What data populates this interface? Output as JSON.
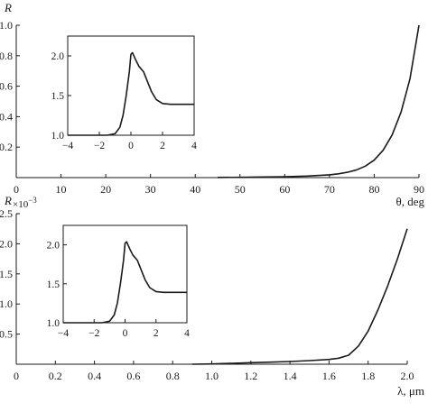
{
  "chart_data": [
    {
      "type": "line",
      "title": "",
      "ylabel": "R",
      "xlabel": "θ, deg",
      "xlim": [
        0,
        90
      ],
      "ylim": [
        0,
        1.0
      ],
      "x_ticks": [
        "0",
        "10",
        "20",
        "30",
        "40",
        "50",
        "60",
        "70",
        "80",
        "90"
      ],
      "y_ticks": [
        "0.2",
        "0.4",
        "0.6",
        "0.8",
        "1.0"
      ],
      "series": [
        {
          "x": [
            45,
            50,
            55,
            60,
            65,
            70,
            72,
            74,
            76,
            78,
            80,
            82,
            84,
            86,
            88,
            90
          ],
          "y": [
            0.001,
            0.002,
            0.004,
            0.006,
            0.01,
            0.018,
            0.025,
            0.035,
            0.05,
            0.075,
            0.115,
            0.18,
            0.28,
            0.43,
            0.65,
            1.0
          ]
        }
      ],
      "inset": {
        "type": "line",
        "xlim": [
          -4,
          4
        ],
        "ylim": [
          1.0,
          2.25
        ],
        "x_ticks": [
          "−4",
          "−2",
          "0",
          "2",
          "4"
        ],
        "y_ticks": [
          "1.0",
          "1.5",
          "2.0"
        ],
        "series": [
          {
            "x": [
              -4,
              -2,
              -1.5,
              -1.0,
              -0.7,
              -0.5,
              -0.3,
              -0.1,
              0.0,
              0.1,
              0.3,
              0.5,
              0.8,
              1.0,
              1.3,
              1.6,
              2.0,
              2.5,
              3.0,
              4.0
            ],
            "y": [
              1.0,
              1.0,
              1.0,
              1.02,
              1.1,
              1.25,
              1.5,
              1.8,
              2.02,
              2.04,
              1.95,
              1.87,
              1.8,
              1.7,
              1.55,
              1.45,
              1.4,
              1.39,
              1.39,
              1.39
            ]
          }
        ]
      }
    },
    {
      "type": "line",
      "title": "",
      "ylabel": "R",
      "y_multiplier": "×10",
      "y_multiplier_exp": "−3",
      "xlabel": "λ, μm",
      "xlim": [
        0,
        2.0
      ],
      "ylim": [
        0,
        2.5
      ],
      "x_ticks": [
        "0",
        "0.2",
        "0.4",
        "0.6",
        "0.8",
        "1.0",
        "1.2",
        "1.4",
        "1.6",
        "1.8",
        "2.0"
      ],
      "y_ticks": [
        "0.5",
        "1.0",
        "1.5",
        "2.0",
        "2.5"
      ],
      "series": [
        {
          "x": [
            0.9,
            1.0,
            1.1,
            1.2,
            1.3,
            1.4,
            1.5,
            1.6,
            1.65,
            1.7,
            1.75,
            1.8,
            1.85,
            1.9,
            1.95,
            2.0
          ],
          "y": [
            0.0,
            0.005,
            0.015,
            0.025,
            0.035,
            0.045,
            0.06,
            0.08,
            0.1,
            0.15,
            0.3,
            0.55,
            0.9,
            1.3,
            1.75,
            2.25
          ]
        }
      ],
      "inset": {
        "type": "line",
        "xlim": [
          -4,
          4
        ],
        "ylim": [
          1.0,
          2.25
        ],
        "x_ticks": [
          "−4",
          "−2",
          "0",
          "2",
          "4"
        ],
        "y_ticks": [
          "1.0",
          "1.5",
          "2.0"
        ],
        "series": [
          {
            "x": [
              -4,
              -2,
              -1.5,
              -1.0,
              -0.7,
              -0.5,
              -0.3,
              -0.1,
              0.0,
              0.1,
              0.3,
              0.5,
              0.8,
              1.0,
              1.3,
              1.6,
              2.0,
              2.5,
              3.0,
              4.0
            ],
            "y": [
              1.0,
              1.0,
              1.0,
              1.02,
              1.1,
              1.25,
              1.5,
              1.8,
              2.02,
              2.04,
              1.95,
              1.87,
              1.8,
              1.7,
              1.55,
              1.45,
              1.4,
              1.39,
              1.39,
              1.39
            ]
          }
        ]
      }
    }
  ]
}
